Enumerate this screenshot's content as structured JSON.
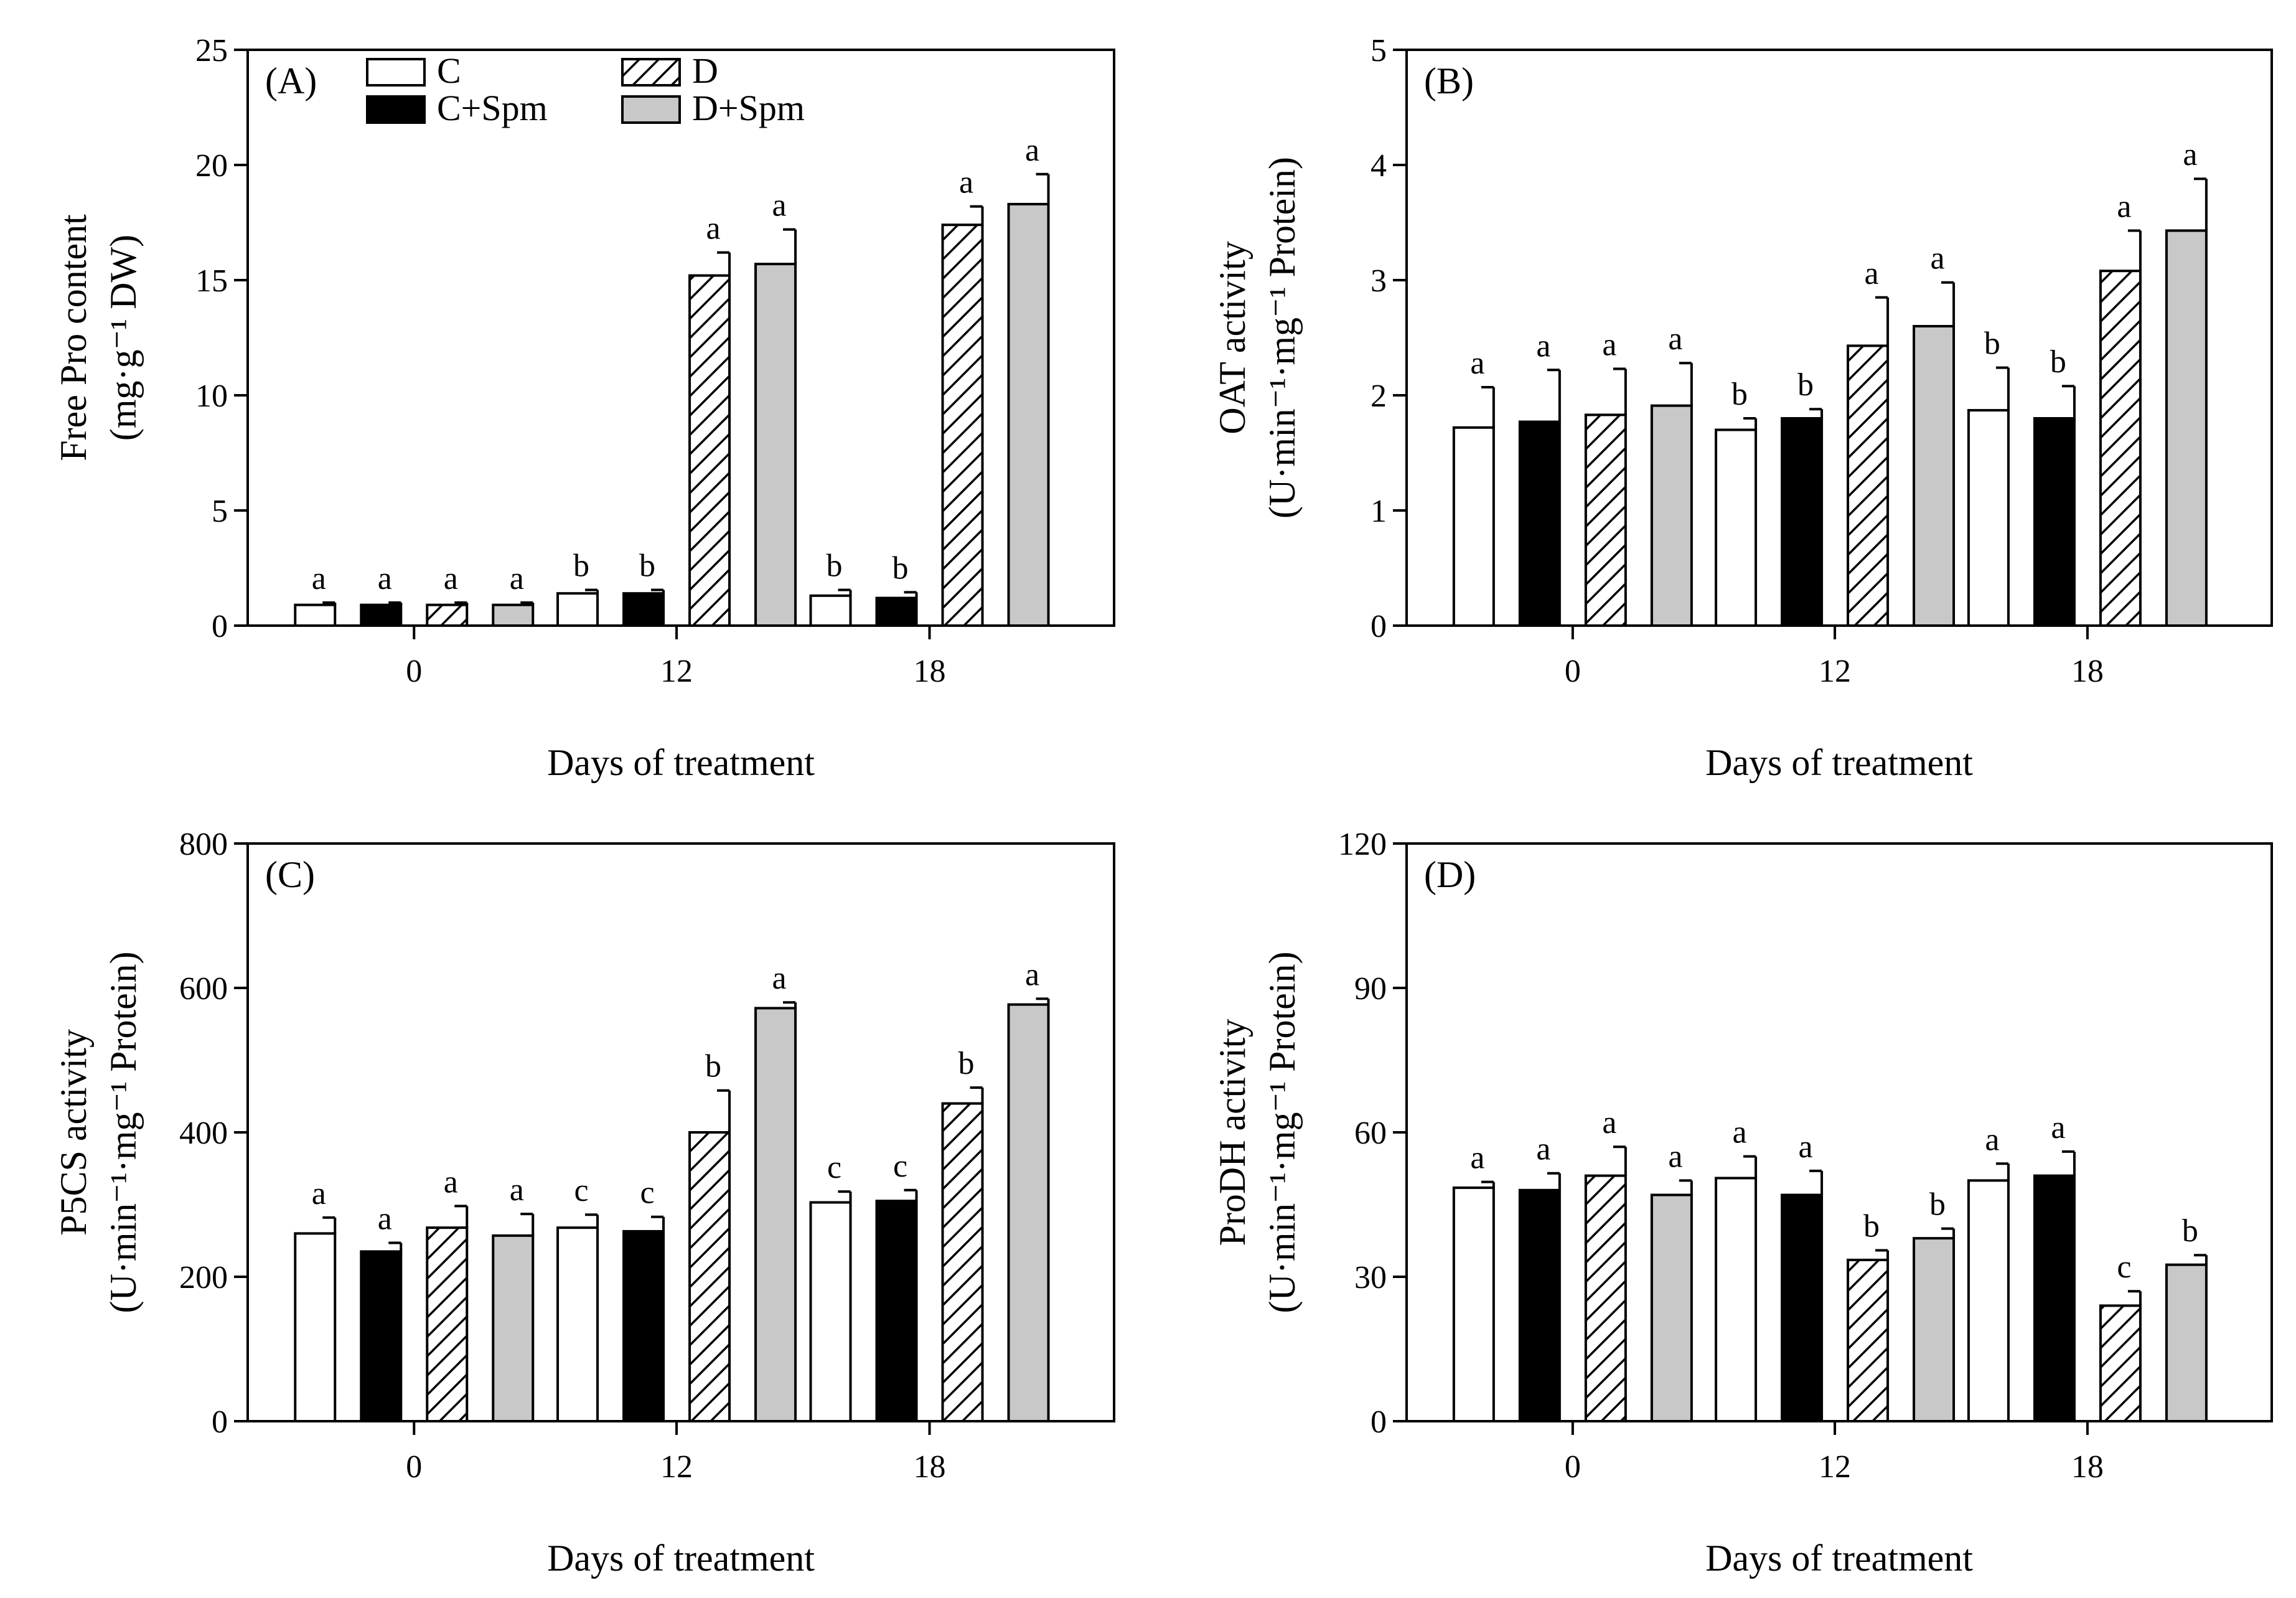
{
  "legend": [
    {
      "name": "C",
      "fill": "white"
    },
    {
      "name": "C+Spm",
      "fill": "black"
    },
    {
      "name": "D",
      "fill": "hatch"
    },
    {
      "name": "D+Spm",
      "fill": "gray"
    }
  ],
  "colors": {
    "white": "#ffffff",
    "black": "#000000",
    "gray": "#c8c8c8",
    "stroke": "#000000"
  },
  "chart_data": [
    {
      "type": "bar",
      "panel": "(A)",
      "xlabel": "Days of treatment",
      "ylabel_lines": [
        "Free Pro content",
        "(mg·g⁻¹ DW)"
      ],
      "ylim": [
        0,
        25
      ],
      "yticks": [
        0,
        5,
        10,
        15,
        20,
        25
      ],
      "categories": [
        "0",
        "12",
        "18"
      ],
      "legend_placement": "top",
      "series": [
        {
          "name": "C",
          "values": [
            0.9,
            1.4,
            1.3
          ],
          "errors": [
            0.1,
            0.15,
            0.25
          ],
          "letters": [
            "a",
            "b",
            "b"
          ]
        },
        {
          "name": "C+Spm",
          "values": [
            0.9,
            1.4,
            1.2
          ],
          "errors": [
            0.1,
            0.15,
            0.25
          ],
          "letters": [
            "a",
            "b",
            "b"
          ]
        },
        {
          "name": "D",
          "values": [
            0.9,
            15.2,
            17.4
          ],
          "errors": [
            0.1,
            1.0,
            0.8
          ],
          "letters": [
            "a",
            "a",
            "a"
          ]
        },
        {
          "name": "D+Spm",
          "values": [
            0.9,
            15.7,
            18.3
          ],
          "errors": [
            0.1,
            1.5,
            1.3
          ],
          "letters": [
            "a",
            "a",
            "a"
          ]
        }
      ]
    },
    {
      "type": "bar",
      "panel": "(B)",
      "xlabel": "Days of treatment",
      "ylabel_lines": [
        "OAT activity",
        "(U·min⁻¹·mg⁻¹ Protein)"
      ],
      "ylim": [
        0,
        5
      ],
      "yticks": [
        0,
        1,
        2,
        3,
        4,
        5
      ],
      "categories": [
        "0",
        "12",
        "18"
      ],
      "series": [
        {
          "name": "C",
          "values": [
            1.72,
            1.7,
            1.87
          ],
          "errors": [
            0.35,
            0.1,
            0.37
          ],
          "letters": [
            "a",
            "b",
            "b"
          ]
        },
        {
          "name": "C+Spm",
          "values": [
            1.77,
            1.8,
            1.8
          ],
          "errors": [
            0.45,
            0.08,
            0.28
          ],
          "letters": [
            "a",
            "b",
            "b"
          ]
        },
        {
          "name": "D",
          "values": [
            1.83,
            2.43,
            3.08
          ],
          "errors": [
            0.4,
            0.42,
            0.35
          ],
          "letters": [
            "a",
            "a",
            "a"
          ]
        },
        {
          "name": "D+Spm",
          "values": [
            1.91,
            2.6,
            3.43
          ],
          "errors": [
            0.37,
            0.38,
            0.45
          ],
          "letters": [
            "a",
            "a",
            "a"
          ]
        }
      ]
    },
    {
      "type": "bar",
      "panel": "(C)",
      "xlabel": "Days of treatment",
      "ylabel_lines": [
        "P5CS activity",
        "(U·min⁻¹·mg⁻¹ Protein)"
      ],
      "ylim": [
        0,
        800
      ],
      "yticks": [
        0,
        200,
        400,
        600,
        800
      ],
      "categories": [
        "0",
        "12",
        "18"
      ],
      "series": [
        {
          "name": "C",
          "values": [
            260,
            268,
            303
          ],
          "errors": [
            22,
            18,
            15
          ],
          "letters": [
            "a",
            "c",
            "c"
          ]
        },
        {
          "name": "C+Spm",
          "values": [
            235,
            263,
            305
          ],
          "errors": [
            12,
            20,
            15
          ],
          "letters": [
            "a",
            "c",
            "c"
          ]
        },
        {
          "name": "D",
          "values": [
            268,
            400,
            440
          ],
          "errors": [
            30,
            58,
            22
          ],
          "letters": [
            "a",
            "b",
            "b"
          ]
        },
        {
          "name": "D+Spm",
          "values": [
            257,
            572,
            577
          ],
          "errors": [
            30,
            8,
            8
          ],
          "letters": [
            "a",
            "a",
            "a"
          ]
        }
      ]
    },
    {
      "type": "bar",
      "panel": "(D)",
      "xlabel": "Days of treatment",
      "ylabel_lines": [
        "ProDH activity",
        "(U·min⁻¹·mg⁻¹ Protein)"
      ],
      "ylim": [
        0,
        120
      ],
      "yticks": [
        0,
        30,
        60,
        90,
        120
      ],
      "categories": [
        "0",
        "12",
        "18"
      ],
      "series": [
        {
          "name": "C",
          "values": [
            48.5,
            50.5,
            50.0
          ],
          "errors": [
            1.2,
            4.5,
            3.5
          ],
          "letters": [
            "a",
            "a",
            "a"
          ]
        },
        {
          "name": "C+Spm",
          "values": [
            48.0,
            47.0,
            51.0
          ],
          "errors": [
            3.5,
            5.0,
            5.0
          ],
          "letters": [
            "a",
            "a",
            "a"
          ]
        },
        {
          "name": "D",
          "values": [
            51.0,
            33.5,
            24.0
          ],
          "errors": [
            6.0,
            2.0,
            3.0
          ],
          "letters": [
            "a",
            "b",
            "c"
          ]
        },
        {
          "name": "D+Spm",
          "values": [
            47.0,
            38.0,
            32.5
          ],
          "errors": [
            3.0,
            2.0,
            2.0
          ],
          "letters": [
            "a",
            "b",
            "b"
          ]
        }
      ]
    }
  ]
}
